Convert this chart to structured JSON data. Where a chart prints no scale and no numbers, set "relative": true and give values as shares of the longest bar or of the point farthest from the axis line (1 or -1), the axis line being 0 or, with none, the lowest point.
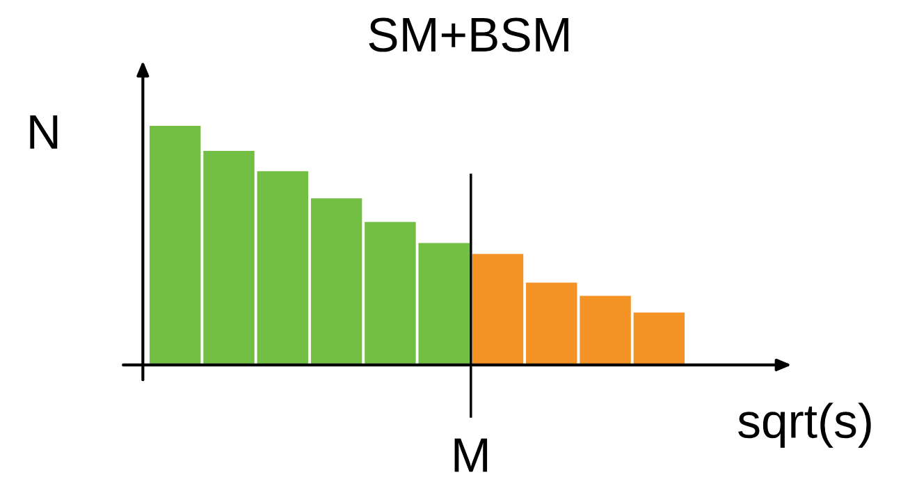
{
  "chart_data": {
    "type": "bar",
    "title": "SM+BSM",
    "xlabel": "sqrt(s)",
    "ylabel": "N",
    "relative": true,
    "categories": [
      null,
      null,
      null,
      null,
      null,
      null,
      null,
      null,
      null,
      null
    ],
    "values": [
      1,
      0.895,
      0.81,
      0.697,
      0.598,
      0.51,
      0.464,
      0.344,
      0.289,
      0.219
    ],
    "colors": [
      "#72bf44",
      "#72bf44",
      "#72bf44",
      "#72bf44",
      "#72bf44",
      "#72bf44",
      "#f39325",
      "#f39325",
      "#f39325",
      "#f39325"
    ],
    "annotations": [
      "M"
    ],
    "grid": false,
    "legend": false
  }
}
